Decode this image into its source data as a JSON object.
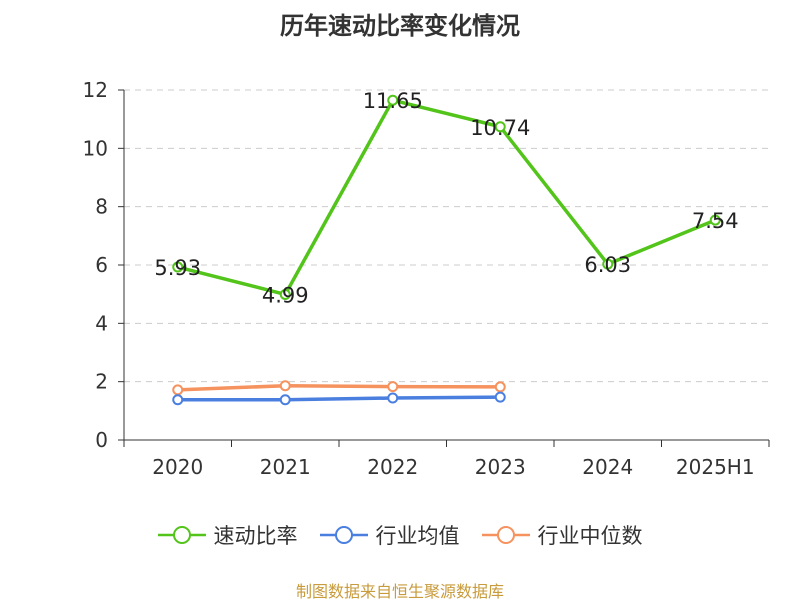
{
  "chart_data": {
    "type": "line",
    "title": "历年速动比率变化情况",
    "categories": [
      "2020",
      "2021",
      "2022",
      "2023",
      "2024",
      "2025H1"
    ],
    "ylim": [
      0,
      12
    ],
    "yticks": [
      0,
      2,
      4,
      6,
      8,
      10,
      12
    ],
    "grid": true,
    "legend_position": "bottom",
    "series": [
      {
        "name": "速动比率",
        "color": "#52c41a",
        "values": [
          5.93,
          4.99,
          11.65,
          10.74,
          6.03,
          7.54
        ],
        "labels": [
          "5.93",
          "4.99",
          "11.65",
          "10.74",
          "6.03",
          "7.54"
        ]
      },
      {
        "name": "行业均值",
        "color": "#4a7fe0",
        "values": [
          1.38,
          1.38,
          1.44,
          1.47,
          null,
          null
        ]
      },
      {
        "name": "行业中位数",
        "color": "#f5925e",
        "values": [
          1.72,
          1.86,
          1.83,
          1.82,
          null,
          null
        ]
      }
    ]
  },
  "footer": {
    "source": "制图数据来自恒生聚源数据库"
  }
}
